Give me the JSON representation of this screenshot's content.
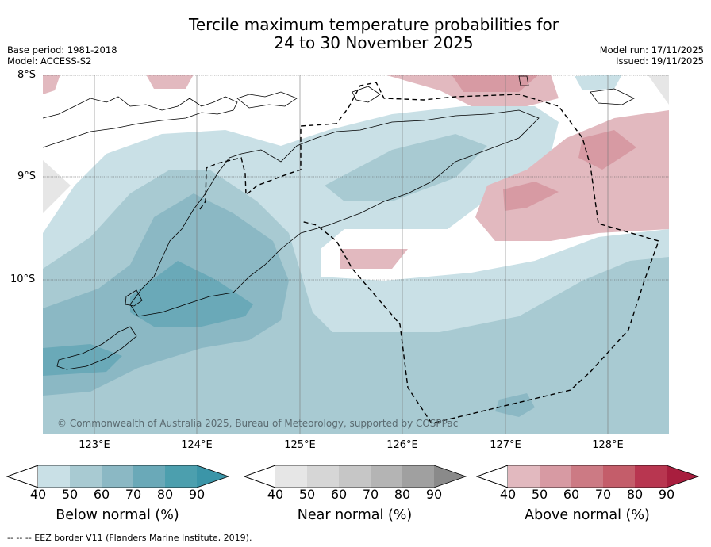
{
  "title": {
    "line1": "Tercile maximum temperature probabilities for",
    "line2": "24 to 30 November 2025"
  },
  "meta_left": {
    "base_period": "Base period: 1981-2018",
    "model": "Model: ACCESS-S2"
  },
  "meta_right": {
    "model_run": "Model run: 17/11/2025",
    "issued": "Issued: 19/11/2025"
  },
  "map": {
    "lat_labels": [
      "8°S",
      "9°S",
      "10°S"
    ],
    "lon_labels": [
      "123°E",
      "124°E",
      "125°E",
      "126°E",
      "127°E",
      "128°E"
    ],
    "copyright": "© Commonwealth of Australia 2025, Bureau of Meteorology, supported by COSPPac"
  },
  "colorbars": [
    {
      "title": "Below normal (%)",
      "ticks": [
        "40",
        "50",
        "60",
        "70",
        "80",
        "90"
      ],
      "colors": [
        "#c9e0e6",
        "#a8cad2",
        "#8bb8c4",
        "#6aa9b8",
        "#4c9fae",
        "#3b95a8"
      ]
    },
    {
      "title": "Near normal (%)",
      "ticks": [
        "40",
        "50",
        "60",
        "70",
        "80",
        "90"
      ],
      "colors": [
        "#e6e6e6",
        "#d6d6d6",
        "#c6c6c6",
        "#b4b4b4",
        "#a0a0a0",
        "#8a8a8a"
      ]
    },
    {
      "title": "Above normal (%)",
      "ticks": [
        "40",
        "50",
        "60",
        "70",
        "80",
        "90"
      ],
      "colors": [
        "#e2b9bf",
        "#d79aa3",
        "#cc7a84",
        "#c45d6a",
        "#b83650",
        "#a81e3e"
      ]
    }
  ],
  "footer": "--  --  -- EEZ border V11 (Flanders Marine Institute, 2019)."
}
